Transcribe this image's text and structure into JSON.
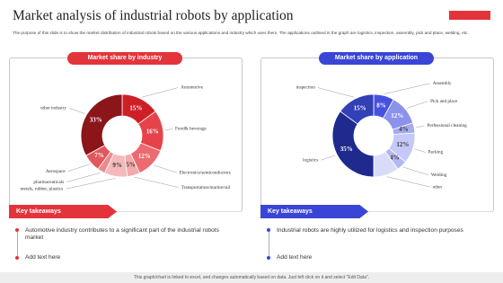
{
  "slide": {
    "title": "Market analysis of industrial robots by application",
    "description": "The purpose of this slide is to show the market distribution of industrial robots based on the various applications and industry which uses them. The applications outlined in the graph are logistics, inspection, assembly, pick and place, welding, etc.",
    "takeaways": [
      {
        "heading": "Key takeaways",
        "items": [
          "Automotive industry contributes to a significant part of the industrial robots market",
          "Add text here"
        ]
      },
      {
        "heading": "Key takeaways",
        "items": [
          "Industrial robots are highly utilized for logistics and inspection purposes",
          "Add text here"
        ]
      }
    ],
    "footer": "This graph/chart is linked to excel, and changes automatically based on data. Just left click on it and select \"Edit Data\"."
  },
  "chart_data": [
    {
      "type": "donut",
      "title": "Market share by industry",
      "header_color": "#e3343b",
      "categories": [
        "Automotive",
        "Food& beverage",
        "Electronics/semiconductors",
        "Transportation/marine/rail",
        "metals, rubber, plastics",
        "pharmaceuticals",
        "Aerospace",
        "other industry"
      ],
      "values": [
        15,
        16,
        12,
        5,
        9,
        3,
        7,
        33
      ],
      "value_labels": [
        "15%",
        "16%",
        "12%",
        "5%",
        "9%",
        null,
        "7%",
        "33%"
      ],
      "colors": [
        "#cf1f26",
        "#e6424a",
        "#ed6a70",
        "#f5a9ac",
        "#f3b9bb",
        "#e98a8e",
        "#e0585e",
        "#8b1519"
      ]
    },
    {
      "type": "donut",
      "title": "Market share by application",
      "header_color": "#3a45d6",
      "categories": [
        "Assembly",
        "Pick and place",
        "Perfessional cleaning",
        "Packing",
        "Welding",
        "other",
        "logistics",
        "inspection"
      ],
      "values": [
        8,
        12,
        4,
        12,
        4,
        10,
        35,
        15
      ],
      "value_labels": [
        "8%",
        "12%",
        "4%",
        "12%",
        "4%",
        null,
        "35%",
        "15%"
      ],
      "colors": [
        "#4652df",
        "#8a92ec",
        "#a4abf1",
        "#c5c9f7",
        "#b3b8f2",
        "#d9dcf9",
        "#1f2a8e",
        "#3240b6"
      ]
    }
  ]
}
